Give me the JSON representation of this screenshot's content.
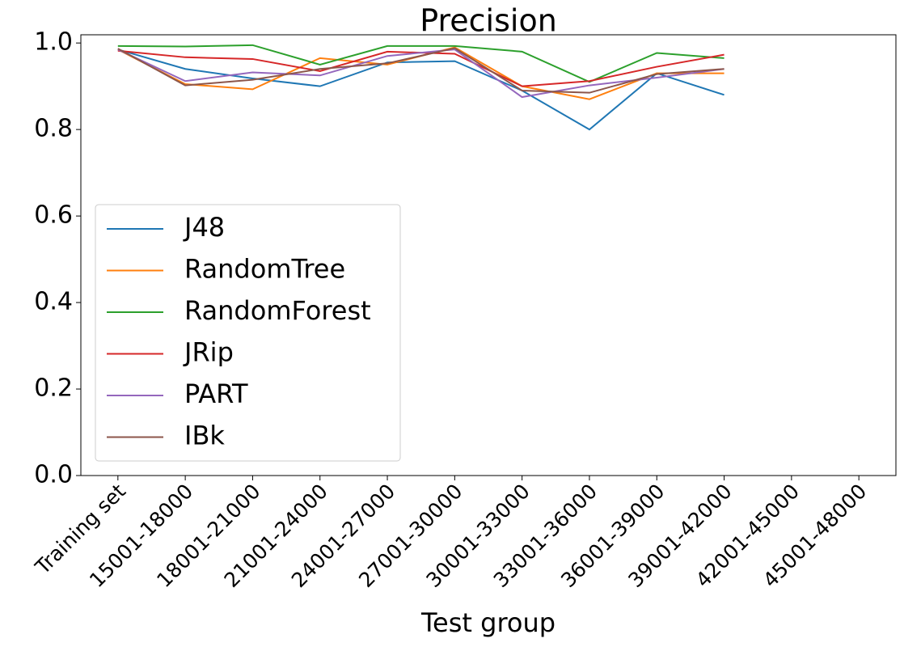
{
  "chart_data": {
    "type": "line",
    "title": "Precision",
    "x_label": "Test group",
    "categories": [
      "Training set",
      "15001-18000",
      "18001-21000",
      "21001-24000",
      "24001-27000",
      "27001-30000",
      "30001-33000",
      "33001-36000",
      "36001-39000",
      "39001-42000",
      "42001-45000",
      "45001-48000"
    ],
    "series": [
      {
        "name": "J48",
        "color": "#1f77b4",
        "values": [
          0.985,
          0.94,
          0.918,
          0.9,
          0.955,
          0.958,
          0.89,
          0.8,
          0.93,
          0.88,
          null,
          null
        ]
      },
      {
        "name": "RandomTree",
        "color": "#ff7f0e",
        "values": [
          0.985,
          0.905,
          0.893,
          0.965,
          0.95,
          0.99,
          0.9,
          0.87,
          0.93,
          0.93,
          null,
          null
        ]
      },
      {
        "name": "RandomForest",
        "color": "#2ca02c",
        "values": [
          0.993,
          0.992,
          0.995,
          0.95,
          0.993,
          0.993,
          0.98,
          0.91,
          0.977,
          0.965,
          null,
          null
        ]
      },
      {
        "name": "JRip",
        "color": "#d62728",
        "values": [
          0.982,
          0.967,
          0.963,
          0.935,
          0.98,
          0.975,
          0.9,
          0.912,
          0.945,
          0.973,
          null,
          null
        ]
      },
      {
        "name": "PART",
        "color": "#9467bd",
        "values": [
          0.985,
          0.912,
          0.932,
          0.925,
          0.97,
          0.985,
          0.875,
          0.902,
          0.92,
          0.94,
          null,
          null
        ]
      },
      {
        "name": "IBk",
        "color": "#8c564b",
        "values": [
          0.987,
          0.902,
          0.915,
          0.94,
          0.953,
          0.988,
          0.89,
          0.885,
          0.928,
          0.94,
          null,
          null
        ]
      }
    ],
    "ylim": [
      0,
      1.019
    ],
    "yticks": [
      {
        "value": 0,
        "label": "0.0"
      },
      0.2,
      0.4,
      0.6,
      0.8,
      {
        "value": 1,
        "label": "1.0"
      }
    ],
    "legend": "lower left"
  }
}
